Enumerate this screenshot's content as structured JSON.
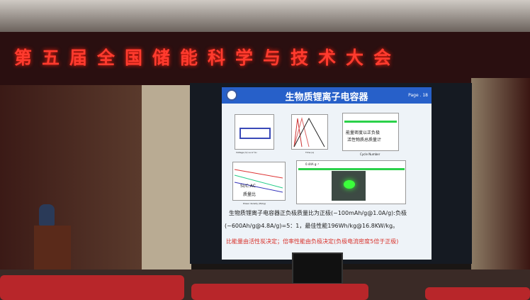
{
  "banner": {
    "text": "第五届全国储能科学与技术大会",
    "color": "#ff3b2e"
  },
  "slide": {
    "title": "生物质锂离子电容器",
    "page": "Page . 18",
    "annotation_top": [
      "能量密度以正负极",
      "活性物质总质量计"
    ],
    "legend_left": [
      "Si/C:AC",
      "质量比"
    ],
    "series_label": "0.44A g⁻¹",
    "line1": "生物质锂离子电容器正负极质量比为正极(~100mAh/g@1.0A/g):负极",
    "line2": "(~600Ah/g@4.8A/g)=5：1，最佳性能196Wh/kg@16.8KW/kg。",
    "line3": "比能量由活性炭决定；倍率性能由负极决定(负极电流密度5倍于正极)",
    "axis_labels": {
      "voltage": "Voltage (V) vs Li⁺/Li",
      "time": "Time (s)",
      "cycle": "Cycle Number",
      "power": "Power density (W/kg)"
    },
    "accent": "#2760c9"
  }
}
